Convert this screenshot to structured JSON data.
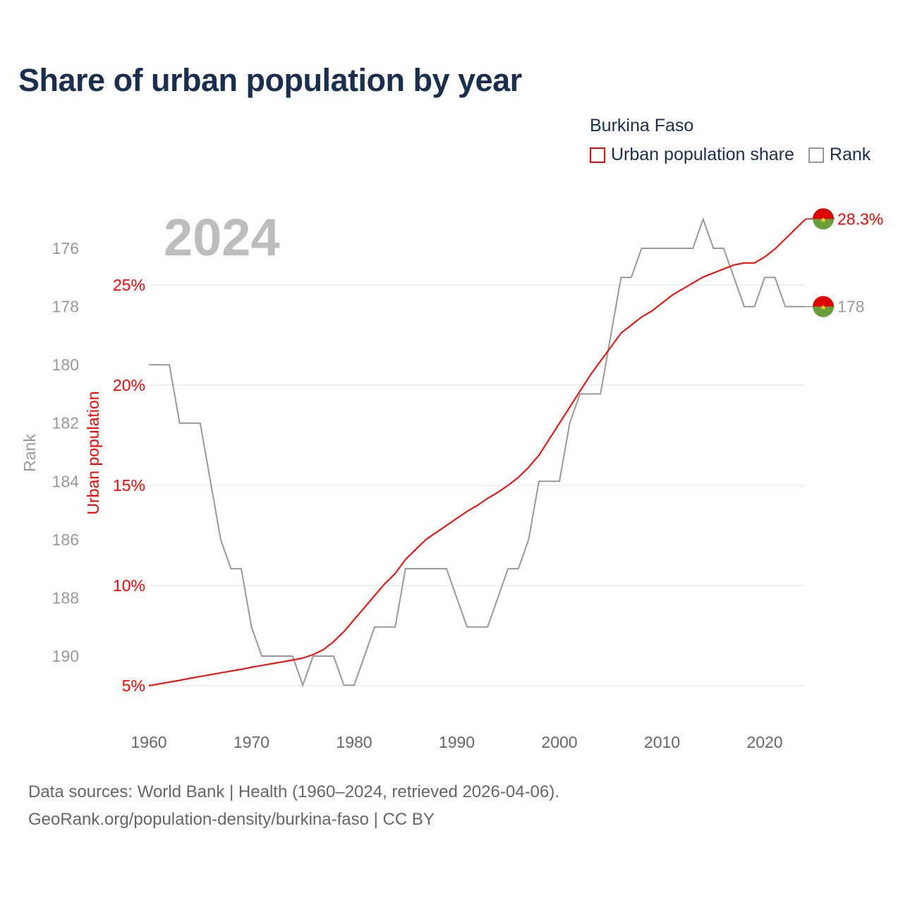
{
  "title": "Share of urban population by year",
  "legend": {
    "title": "Burkina Faso",
    "items": [
      {
        "label": "Urban population share",
        "color": "#ff0000"
      },
      {
        "label": "Rank",
        "color": "#999999"
      }
    ]
  },
  "footer": {
    "line1": "Data sources: World Bank | Health (1960–2024, retrieved 2026-04-06).",
    "line2": "GeoRank.org/population-density/burkina-faso | CC BY"
  },
  "chart_data": {
    "type": "line",
    "title": "Share of urban population by year",
    "year_label": "2024",
    "x": [
      1960,
      1961,
      1962,
      1963,
      1964,
      1965,
      1966,
      1967,
      1968,
      1969,
      1970,
      1971,
      1972,
      1973,
      1974,
      1975,
      1976,
      1977,
      1978,
      1979,
      1980,
      1981,
      1982,
      1983,
      1984,
      1985,
      1986,
      1987,
      1988,
      1989,
      1990,
      1991,
      1992,
      1993,
      1994,
      1995,
      1996,
      1997,
      1998,
      1999,
      2000,
      2001,
      2002,
      2003,
      2004,
      2005,
      2006,
      2007,
      2008,
      2009,
      2010,
      2011,
      2012,
      2013,
      2014,
      2015,
      2016,
      2017,
      2018,
      2019,
      2020,
      2021,
      2022,
      2023,
      2024
    ],
    "xlim": [
      1960,
      2024
    ],
    "xticks": [
      "1960",
      "1970",
      "1980",
      "1990",
      "2000",
      "2010",
      "2020"
    ],
    "series": [
      {
        "name": "Urban population share",
        "axis": "right-inner",
        "color": "#ff0000",
        "values": [
          5.0,
          5.09,
          5.18,
          5.27,
          5.37,
          5.46,
          5.55,
          5.64,
          5.73,
          5.82,
          5.92,
          6.01,
          6.1,
          6.19,
          6.28,
          6.38,
          6.55,
          6.8,
          7.2,
          7.7,
          8.3,
          8.9,
          9.5,
          10.1,
          10.6,
          11.3,
          11.8,
          12.3,
          12.65,
          13.0,
          13.35,
          13.7,
          14.0,
          14.35,
          14.65,
          15.0,
          15.4,
          15.9,
          16.5,
          17.3,
          18.1,
          18.9,
          19.7,
          20.5,
          21.2,
          21.9,
          22.6,
          23.0,
          23.4,
          23.7,
          24.1,
          24.5,
          24.8,
          25.1,
          25.4,
          25.6,
          25.8,
          26.0,
          26.1,
          26.1,
          26.4,
          26.8,
          27.3,
          27.8,
          28.3
        ],
        "end_label": "28.3%"
      },
      {
        "name": "Rank",
        "axis": "left",
        "color": "#999999",
        "values": [
          180,
          180,
          180,
          182,
          182,
          182,
          184,
          186,
          187,
          187,
          189,
          190,
          190,
          190,
          190,
          191,
          190,
          190,
          190,
          191,
          191,
          190,
          189,
          189,
          189,
          187,
          187,
          187,
          187,
          187,
          188,
          189,
          189,
          189,
          188,
          187,
          187,
          186,
          184,
          184,
          184,
          182,
          181,
          181,
          181,
          179,
          177,
          177,
          176,
          176,
          176,
          176,
          176,
          176,
          175,
          176,
          176,
          177,
          178,
          178,
          177,
          177,
          178,
          178,
          178
        ],
        "end_label": "178"
      }
    ],
    "y_urban": {
      "label": "Urban population",
      "ticks": [
        "5%",
        "10%",
        "15%",
        "20%",
        "25%"
      ],
      "tick_values": [
        5,
        10,
        15,
        20,
        25
      ],
      "range": [
        5,
        28.3
      ]
    },
    "y_rank": {
      "label": "Rank",
      "ticks": [
        "176",
        "178",
        "180",
        "182",
        "184",
        "186",
        "188",
        "190"
      ],
      "tick_values": [
        176,
        178,
        180,
        182,
        184,
        186,
        188,
        190
      ],
      "inverted": true
    },
    "grid": true,
    "legend_position": "top-right"
  }
}
